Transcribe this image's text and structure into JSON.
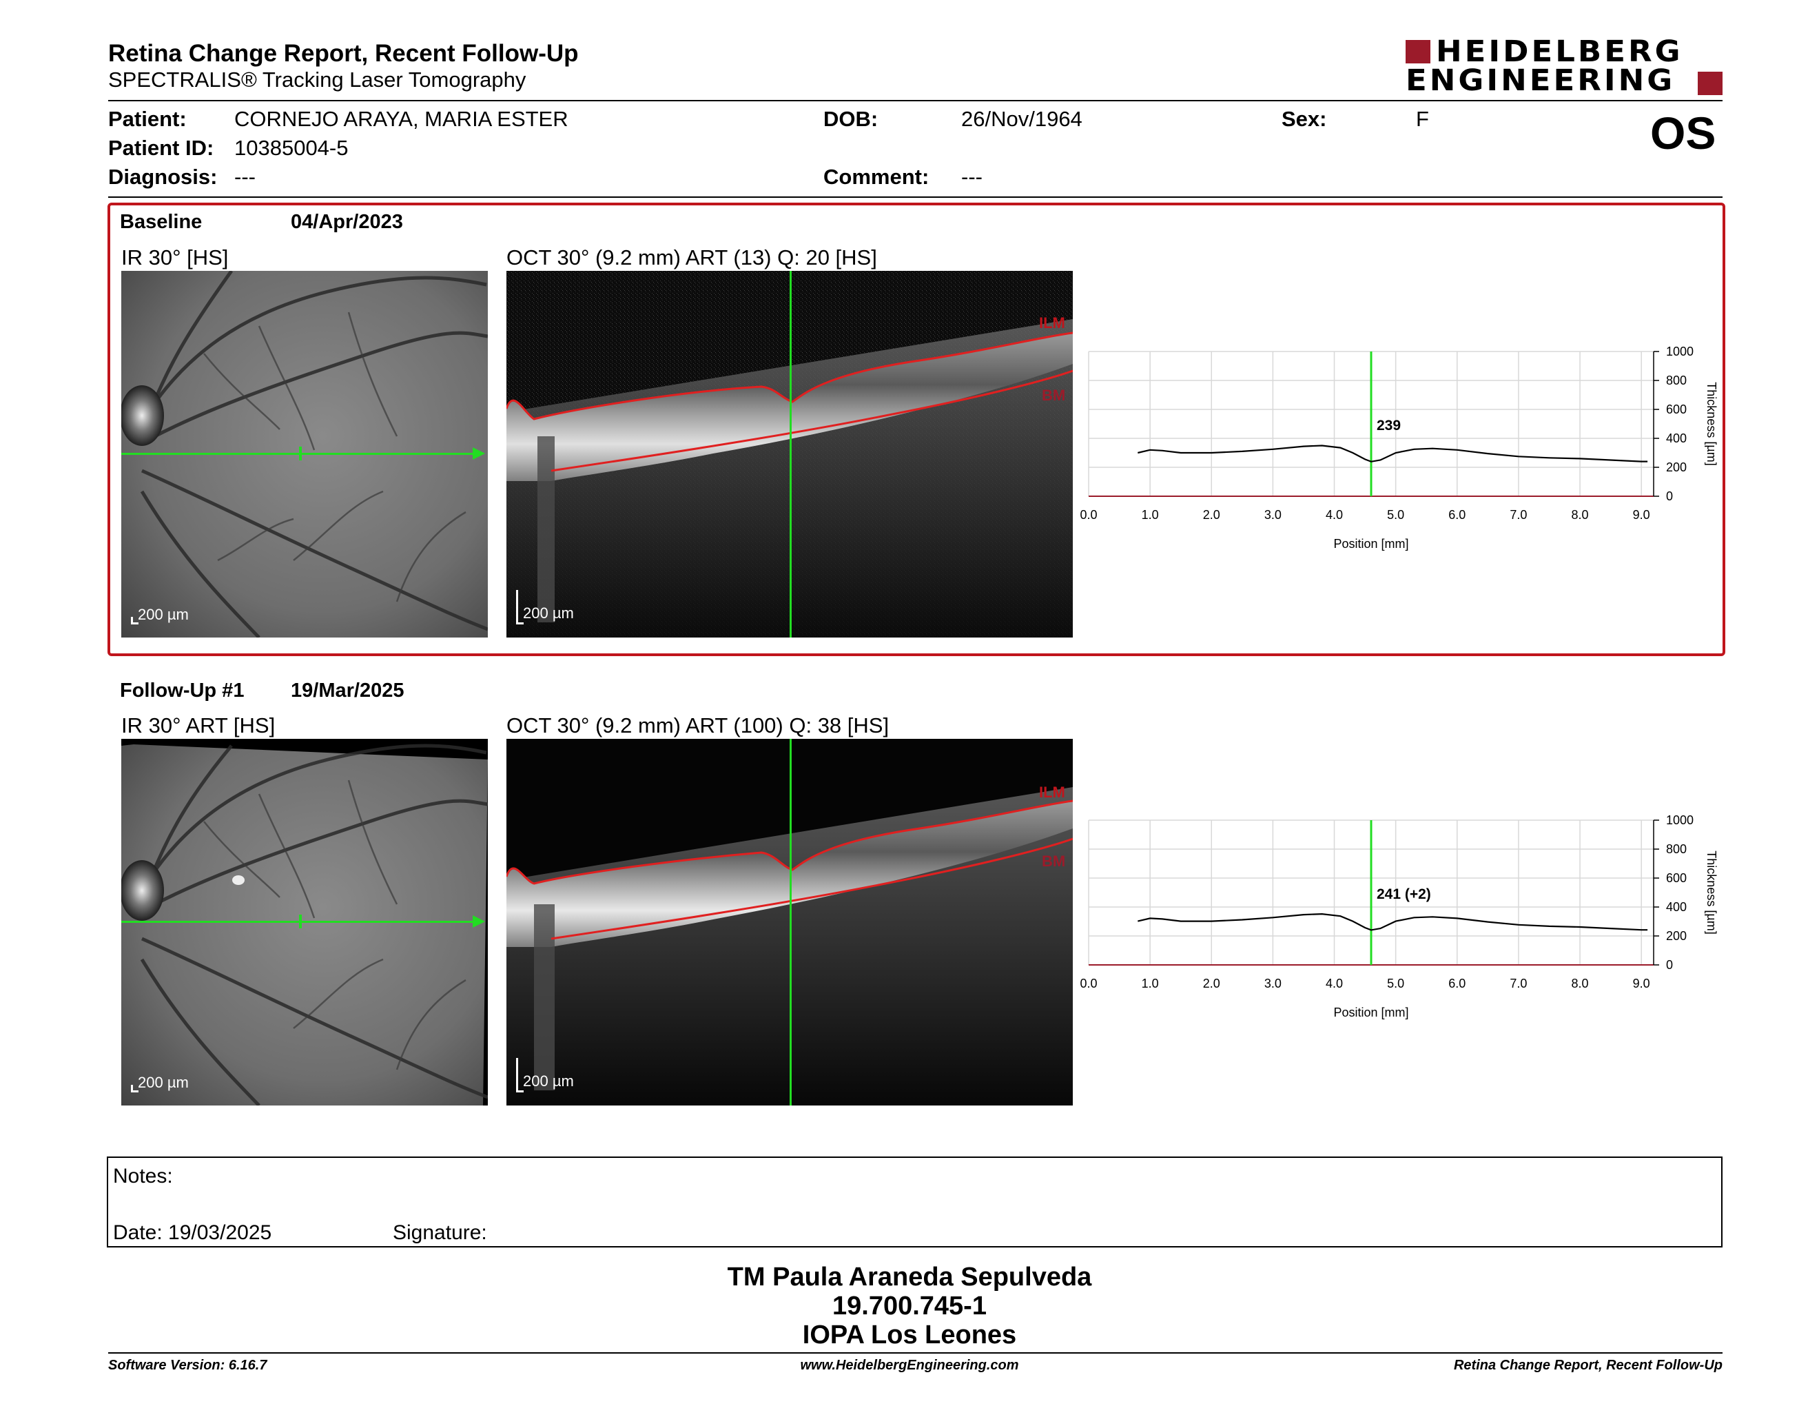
{
  "header": {
    "title": "Retina Change Report, Recent Follow-Up",
    "subtitle": "SPECTRALIS® Tracking Laser Tomography",
    "logo_line1": "HEIDELBERG",
    "logo_line2": "ENGINEERING",
    "eye": "OS"
  },
  "patient": {
    "patient_label": "Patient:",
    "patient_value": "CORNEJO ARAYA, MARIA ESTER",
    "id_label": "Patient ID:",
    "id_value": "10385004-5",
    "diagnosis_label": "Diagnosis:",
    "diagnosis_value": "---",
    "dob_label": "DOB:",
    "dob_value": "26/Nov/1964",
    "comment_label": "Comment:",
    "comment_value": "---",
    "sex_label": "Sex:",
    "sex_value": "F"
  },
  "baseline": {
    "label": "Baseline",
    "date": "04/Apr/2023",
    "ir_title": "IR 30° [HS]",
    "oct_title": "OCT 30° (9.2 mm) ART (13) Q: 20 [HS]",
    "ir_scale": "200 µm",
    "oct_scale": "200 µm",
    "ilm": "ILM",
    "bm": "BM",
    "thickness_label": "239"
  },
  "followup": {
    "label": "Follow-Up #1",
    "date": "19/Mar/2025",
    "ir_title": "IR 30° ART [HS]",
    "oct_title": "OCT 30° (9.2 mm) ART (100) Q: 38 [HS]",
    "ir_scale": "200 µm",
    "oct_scale": "200 µm",
    "ilm": "ILM",
    "bm": "BM",
    "thickness_label": "241 (+2)"
  },
  "chart_data": [
    {
      "type": "line",
      "xlabel": "Position [mm]",
      "ylabel": "Thickness [µm]",
      "xlim": [
        0,
        9.2
      ],
      "ylim": [
        0,
        1000
      ],
      "x_ticks": [
        "0.0",
        "1.0",
        "2.0",
        "3.0",
        "4.0",
        "5.0",
        "6.0",
        "7.0",
        "8.0",
        "9.0"
      ],
      "y_ticks": [
        "0",
        "200",
        "400",
        "600",
        "800",
        "1000"
      ],
      "cursor_x": 4.6,
      "annotation": "239",
      "x": [
        0.8,
        1.0,
        1.2,
        1.5,
        2.0,
        2.5,
        3.0,
        3.5,
        3.8,
        4.1,
        4.3,
        4.5,
        4.6,
        4.75,
        5.0,
        5.3,
        5.6,
        6.0,
        6.5,
        7.0,
        7.5,
        8.0,
        8.5,
        9.0,
        9.1
      ],
      "values": [
        300,
        320,
        315,
        300,
        300,
        310,
        325,
        345,
        350,
        335,
        300,
        255,
        239,
        250,
        300,
        325,
        330,
        320,
        295,
        275,
        265,
        260,
        250,
        240,
        240
      ],
      "grid": true
    },
    {
      "type": "line",
      "xlabel": "Position [mm]",
      "ylabel": "Thickness [µm]",
      "xlim": [
        0,
        9.2
      ],
      "ylim": [
        0,
        1000
      ],
      "x_ticks": [
        "0.0",
        "1.0",
        "2.0",
        "3.0",
        "4.0",
        "5.0",
        "6.0",
        "7.0",
        "8.0",
        "9.0"
      ],
      "y_ticks": [
        "0",
        "200",
        "400",
        "600",
        "800",
        "1000"
      ],
      "cursor_x": 4.6,
      "annotation": "241 (+2)",
      "x": [
        0.8,
        1.0,
        1.2,
        1.5,
        2.0,
        2.5,
        3.0,
        3.5,
        3.8,
        4.1,
        4.3,
        4.5,
        4.6,
        4.75,
        5.0,
        5.3,
        5.6,
        6.0,
        6.5,
        7.0,
        7.5,
        8.0,
        8.5,
        9.0,
        9.1
      ],
      "values": [
        302,
        322,
        317,
        302,
        302,
        312,
        327,
        347,
        352,
        337,
        302,
        257,
        241,
        252,
        302,
        327,
        332,
        322,
        297,
        277,
        267,
        262,
        252,
        242,
        242
      ],
      "grid": true
    }
  ],
  "notes": {
    "notes_label": "Notes:",
    "date_label": "Date: 19/03/2025",
    "signature_label": "Signature:"
  },
  "signature_block": {
    "name": "TM Paula Araneda Sepulveda",
    "id": "19.700.745-1",
    "org": "IOPA Los Leones"
  },
  "footer": {
    "software": "Software Version: 6.16.7",
    "website": "www.HeidelbergEngineering.com",
    "report": "Retina Change Report, Recent Follow-Up"
  },
  "colors": {
    "frame_red": "#c0151c",
    "logo_red": "#9b1b2a",
    "cursor_green": "#22dd22",
    "layer_red": "#e02020"
  }
}
